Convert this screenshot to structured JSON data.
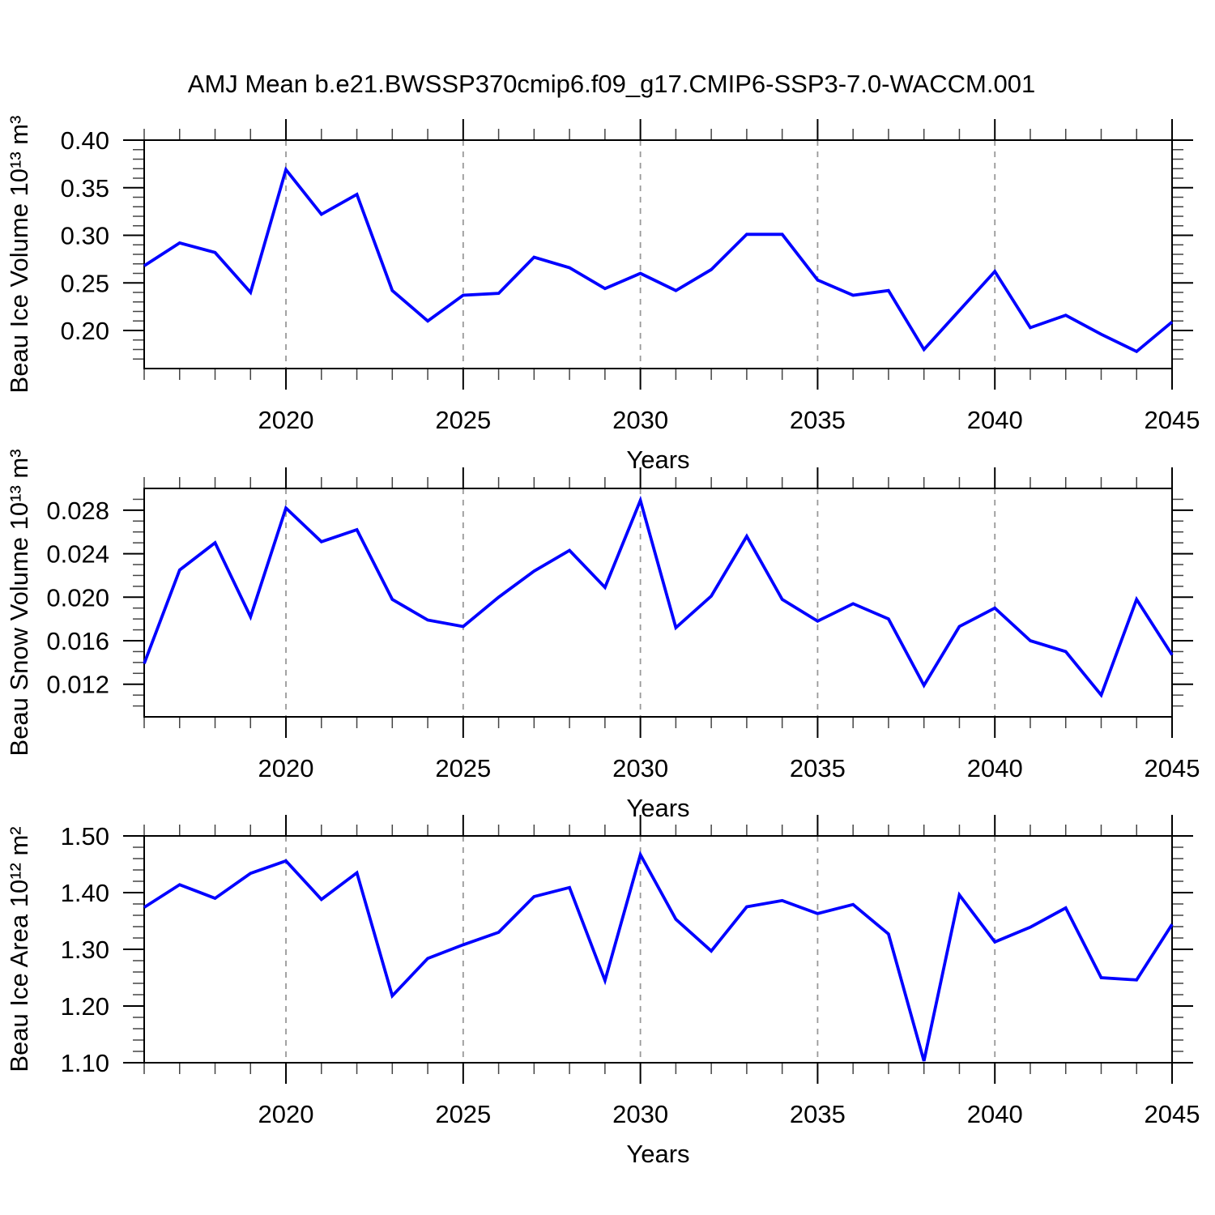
{
  "title": "AMJ Mean b.e21.BWSSP370cmip6.f09_g17.CMIP6-SSP3-7.0-WACCM.001",
  "colors": {
    "line": "#0000ff",
    "grid": "#999999",
    "axis": "#000000",
    "minor_tick": "#444444",
    "text": "#000000",
    "background": "#ffffff"
  },
  "x_axis": {
    "label": "Years",
    "year_start": 2016,
    "year_end": 2045,
    "major_tick_years": [
      2020,
      2025,
      2030,
      2035,
      2040,
      2045
    ],
    "major_tick_labels": [
      "2020",
      "2025",
      "2030",
      "2035",
      "2040",
      "2045"
    ],
    "gridline_years": [
      2020,
      2025,
      2030,
      2035,
      2040
    ]
  },
  "chart_data": [
    {
      "type": "line",
      "ylabel": "Beau Ice Volume 10¹³ m³",
      "ylim": [
        0.16,
        0.4
      ],
      "ytick_values": [
        0.4,
        0.35,
        0.3,
        0.25,
        0.2
      ],
      "ytick_labels": [
        "0.40",
        "0.35",
        "0.30",
        "0.25",
        "0.20"
      ],
      "yminor_step": 0.01,
      "x": [
        2016,
        2017,
        2018,
        2019,
        2020,
        2021,
        2022,
        2023,
        2024,
        2025,
        2026,
        2027,
        2028,
        2029,
        2030,
        2031,
        2032,
        2033,
        2034,
        2035,
        2036,
        2037,
        2038,
        2039,
        2040,
        2041,
        2042,
        2043,
        2044,
        2045
      ],
      "values": [
        0.268,
        0.292,
        0.282,
        0.24,
        0.369,
        0.322,
        0.343,
        0.242,
        0.21,
        0.237,
        0.239,
        0.277,
        0.266,
        0.244,
        0.26,
        0.242,
        0.264,
        0.301,
        0.301,
        0.253,
        0.237,
        0.242,
        0.18,
        0.221,
        0.262,
        0.203,
        0.216,
        0.196,
        0.178,
        0.209
      ],
      "xlabel": "Years",
      "grid": "vertical-dashed",
      "legend": "none"
    },
    {
      "type": "line",
      "ylabel": "Beau Snow Volume 10¹³ m³",
      "ylim": [
        0.009,
        0.03
      ],
      "ytick_values": [
        0.028,
        0.024,
        0.02,
        0.016,
        0.012
      ],
      "ytick_labels": [
        "0.028",
        "0.024",
        "0.020",
        "0.016",
        "0.012"
      ],
      "yminor_step": 0.001,
      "x": [
        2016,
        2017,
        2018,
        2019,
        2020,
        2021,
        2022,
        2023,
        2024,
        2025,
        2026,
        2027,
        2028,
        2029,
        2030,
        2031,
        2032,
        2033,
        2034,
        2035,
        2036,
        2037,
        2038,
        2039,
        2040,
        2041,
        2042,
        2043,
        2044,
        2045
      ],
      "values": [
        0.0139,
        0.0225,
        0.025,
        0.0182,
        0.0282,
        0.0251,
        0.0262,
        0.0198,
        0.0179,
        0.0173,
        0.02,
        0.0224,
        0.0243,
        0.0209,
        0.0289,
        0.0172,
        0.0201,
        0.0256,
        0.0198,
        0.0178,
        0.0194,
        0.018,
        0.0119,
        0.0173,
        0.019,
        0.016,
        0.015,
        0.011,
        0.0198,
        0.0147
      ],
      "xlabel": "Years",
      "grid": "vertical-dashed",
      "legend": "none"
    },
    {
      "type": "line",
      "ylabel": "Beau Ice Area 10¹² m²",
      "ylim": [
        1.1,
        1.5
      ],
      "ytick_values": [
        1.5,
        1.4,
        1.3,
        1.2,
        1.1
      ],
      "ytick_labels": [
        "1.50",
        "1.40",
        "1.30",
        "1.20",
        "1.10"
      ],
      "yminor_step": 0.02,
      "x": [
        2016,
        2017,
        2018,
        2019,
        2020,
        2021,
        2022,
        2023,
        2024,
        2025,
        2026,
        2027,
        2028,
        2029,
        2030,
        2031,
        2032,
        2033,
        2034,
        2035,
        2036,
        2037,
        2038,
        2039,
        2040,
        2041,
        2042,
        2043,
        2044,
        2045
      ],
      "values": [
        1.374,
        1.414,
        1.39,
        1.434,
        1.456,
        1.388,
        1.435,
        1.218,
        1.284,
        1.308,
        1.33,
        1.393,
        1.409,
        1.245,
        1.467,
        1.353,
        1.297,
        1.375,
        1.386,
        1.363,
        1.379,
        1.327,
        1.103,
        1.396,
        1.313,
        1.339,
        1.373,
        1.25,
        1.246,
        1.344
      ],
      "xlabel": "Years",
      "grid": "vertical-dashed",
      "legend": "none"
    }
  ]
}
